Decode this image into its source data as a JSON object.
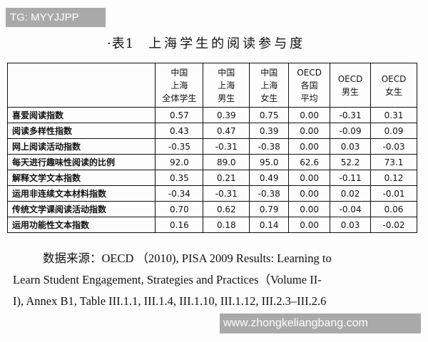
{
  "watermarks": {
    "top": "TG: MYYJJPP",
    "bottom": "www.zhongkeliangbang.com"
  },
  "title": {
    "number": "·表1",
    "text": "上海学生的阅读参与度"
  },
  "table": {
    "headers": [
      "",
      [
        "中国",
        "上海",
        "全体学生"
      ],
      [
        "中国",
        "上海",
        "男生"
      ],
      [
        "中国",
        "上海",
        "女生"
      ],
      [
        "OECD",
        "各国",
        "平均"
      ],
      [
        "OECD",
        "男生"
      ],
      [
        "OECD",
        "女生"
      ]
    ],
    "rows": [
      {
        "label": "喜爱阅读指数",
        "values": [
          "0.57",
          "0.39",
          "0.75",
          "0.00",
          "-0.31",
          "0.31"
        ]
      },
      {
        "label": "阅读多样性指数",
        "values": [
          "0.43",
          "0.47",
          "0.39",
          "0.00",
          "-0.09",
          "0.09"
        ]
      },
      {
        "label": "网上阅读活动指数",
        "values": [
          "-0.35",
          "-0.31",
          "-0.38",
          "0.00",
          "0.03",
          "-0.03"
        ]
      },
      {
        "label": "每天进行趣味性阅读的比例",
        "values": [
          "92.0",
          "89.0",
          "95.0",
          "62.6",
          "52.2",
          "73.1"
        ]
      },
      {
        "label": "解释文学文本指数",
        "values": [
          "0.35",
          "0.21",
          "0.49",
          "0.00",
          "-0.11",
          "0.12"
        ]
      },
      {
        "label": "运用非连续文本材料指数",
        "values": [
          "-0.34",
          "-0.31",
          "-0.38",
          "0.00",
          "0.02",
          "-0.01"
        ]
      },
      {
        "label": "传统文学课阅读活动指数",
        "values": [
          "0.70",
          "0.62",
          "0.79",
          "0.00",
          "-0.04",
          "0.06"
        ]
      },
      {
        "label": "运用功能性文本指数",
        "values": [
          "0.16",
          "0.18",
          "0.14",
          "0.00",
          "0.03",
          "-0.02"
        ]
      }
    ]
  },
  "source": {
    "line1": "数据来源：OECD （2010), PISA 2009 Results: Learning to",
    "line2": "Learn Student Engagement, Strategies and Practices（Volume II-",
    "line3": "I), Annex B1, Table III.1.1, III.1.4, III.1.10, III.1.12, III.2.3–III.2.6"
  }
}
